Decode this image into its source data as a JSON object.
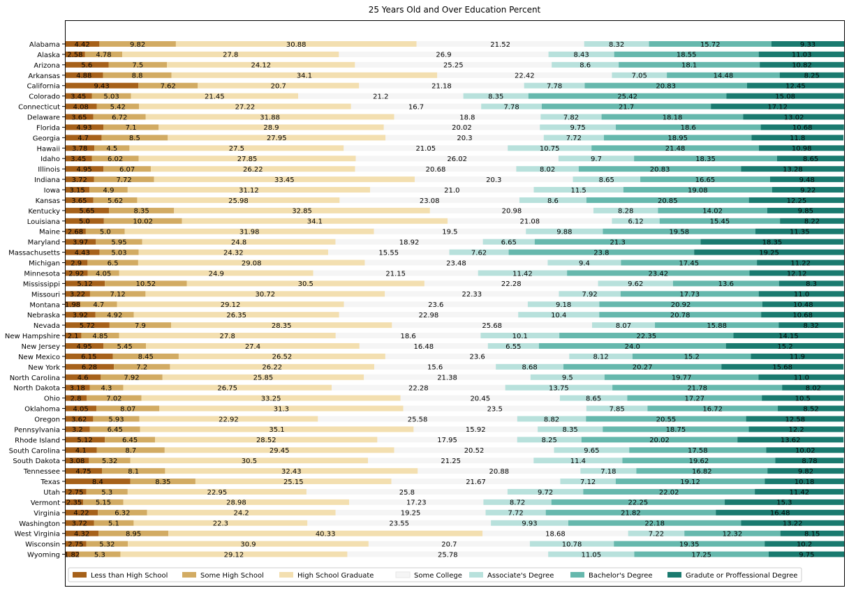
{
  "chart_data": {
    "type": "bar",
    "orientation": "horizontal",
    "stacked": true,
    "title": "25 Years Old and Over Education Percent",
    "xlabel": "",
    "ylabel": "",
    "xlim": [
      0,
      100
    ],
    "grid": false,
    "legend_position": "bottom",
    "categories": [
      "Alabama",
      "Alaska",
      "Arizona",
      "Arkansas",
      "California",
      "Colorado",
      "Connecticut",
      "Delaware",
      "Florida",
      "Georgia",
      "Hawaii",
      "Idaho",
      "Illinois",
      "Indiana",
      "Iowa",
      "Kansas",
      "Kentucky",
      "Louisiana",
      "Maine",
      "Maryland",
      "Massachusetts",
      "Michigan",
      "Minnesota",
      "Mississippi",
      "Missouri",
      "Montana",
      "Nebraska",
      "Nevada",
      "New Hampshire",
      "New Jersey",
      "New Mexico",
      "New York",
      "North Carolina",
      "North Dakota",
      "Ohio",
      "Oklahoma",
      "Oregon",
      "Pennsylvania",
      "Rhode Island",
      "South Carolina",
      "South Dakota",
      "Tennessee",
      "Texas",
      "Utah",
      "Vermont",
      "Virginia",
      "Washington",
      "West Virginia",
      "Wisconsin",
      "Wyoming"
    ],
    "series": [
      {
        "name": "Less than High School",
        "color": "#a6611a",
        "values": [
          "4.42",
          "2.58",
          "5.6",
          "4.88",
          "9.43",
          "3.45",
          "4.08",
          "3.65",
          "4.93",
          "4.7",
          "3.78",
          "3.45",
          "4.95",
          "3.72",
          "3.15",
          "3.65",
          "5.65",
          "5.0",
          "2.68",
          "3.97",
          "4.43",
          "2.9",
          "2.92",
          "5.12",
          "3.22",
          "1.98",
          "3.92",
          "5.72",
          "2.1",
          "4.95",
          "6.15",
          "6.28",
          "4.6",
          "3.18",
          "2.8",
          "4.05",
          "3.62",
          "3.2",
          "5.12",
          "4.1",
          "3.08",
          "4.75",
          "8.4",
          "2.75",
          "2.35",
          "4.22",
          "3.72",
          "4.32",
          "2.75",
          "1.82"
        ]
      },
      {
        "name": "Some High School",
        "color": "#d2ab63",
        "values": [
          "9.82",
          "4.78",
          "7.5",
          "8.8",
          "7.62",
          "5.03",
          "5.42",
          "6.72",
          "7.1",
          "8.5",
          "4.5",
          "6.02",
          "6.07",
          "7.72",
          "4.9",
          "5.62",
          "8.35",
          "10.02",
          "5.0",
          "5.95",
          "5.03",
          "6.5",
          "4.05",
          "10.52",
          "7.12",
          "4.7",
          "4.92",
          "7.9",
          "4.85",
          "5.45",
          "8.45",
          "7.2",
          "7.92",
          "4.3",
          "7.02",
          "8.07",
          "5.93",
          "6.45",
          "6.45",
          "8.7",
          "5.32",
          "8.1",
          "8.35",
          "5.3",
          "5.15",
          "6.32",
          "5.1",
          "8.95",
          "5.32",
          "5.3"
        ]
      },
      {
        "name": "High School Graduate",
        "color": "#f3dfb0",
        "values": [
          "30.88",
          "27.8",
          "24.12",
          "34.1",
          "20.7",
          "21.45",
          "27.22",
          "31.88",
          "28.9",
          "27.95",
          "27.5",
          "27.85",
          "26.22",
          "33.45",
          "31.12",
          "25.98",
          "32.85",
          "34.1",
          "31.98",
          "24.8",
          "24.32",
          "29.08",
          "24.9",
          "30.5",
          "30.72",
          "29.12",
          "26.35",
          "28.35",
          "27.8",
          "27.4",
          "26.52",
          "26.22",
          "25.85",
          "26.75",
          "33.25",
          "31.3",
          "22.92",
          "35.1",
          "28.52",
          "29.45",
          "30.5",
          "32.43",
          "25.15",
          "22.95",
          "28.98",
          "24.2",
          "22.3",
          "40.33",
          "30.9",
          "29.12"
        ]
      },
      {
        "name": "Some College",
        "color": "#f5f5f5",
        "values": [
          "21.52",
          "26.9",
          "25.25",
          "22.42",
          "21.18",
          "21.2",
          "16.7",
          "18.8",
          "20.02",
          "20.3",
          "21.05",
          "26.02",
          "20.68",
          "20.3",
          "21.0",
          "23.08",
          "20.98",
          "21.08",
          "19.5",
          "18.92",
          "15.55",
          "23.48",
          "21.15",
          "22.28",
          "22.33",
          "23.6",
          "22.98",
          "25.68",
          "18.6",
          "16.48",
          "23.6",
          "15.6",
          "21.38",
          "22.28",
          "20.45",
          "23.5",
          "25.58",
          "15.92",
          "17.95",
          "20.52",
          "21.25",
          "20.88",
          "21.67",
          "25.8",
          "17.23",
          "19.25",
          "23.55",
          "18.68",
          "20.7",
          "25.78"
        ]
      },
      {
        "name": "Associate's Degree",
        "color": "#b8e1dc",
        "values": [
          "8.32",
          "8.43",
          "8.6",
          "7.05",
          "7.78",
          "8.35",
          "7.78",
          "7.82",
          "9.75",
          "7.72",
          "10.75",
          "9.7",
          "8.02",
          "8.65",
          "11.5",
          "8.6",
          "8.28",
          "6.12",
          "9.88",
          "6.65",
          "7.62",
          "9.4",
          "11.42",
          "9.62",
          "7.92",
          "9.18",
          "10.4",
          "8.07",
          "10.1",
          "6.55",
          "8.12",
          "8.68",
          "9.5",
          "13.75",
          "8.65",
          "7.85",
          "8.82",
          "8.35",
          "8.25",
          "9.65",
          "11.4",
          "7.18",
          "7.12",
          "9.72",
          "8.72",
          "7.72",
          "9.93",
          "7.22",
          "10.78",
          "11.05"
        ]
      },
      {
        "name": "Bachelor's Degree",
        "color": "#66b8ad",
        "values": [
          "15.72",
          "18.55",
          "18.1",
          "14.48",
          "20.83",
          "25.42",
          "21.7",
          "18.18",
          "18.6",
          "18.95",
          "21.48",
          "18.35",
          "20.83",
          "16.65",
          "19.08",
          "20.85",
          "14.02",
          "15.45",
          "19.58",
          "21.3",
          "23.8",
          "17.45",
          "23.42",
          "13.6",
          "17.73",
          "20.92",
          "20.78",
          "15.88",
          "22.35",
          "24.0",
          "15.2",
          "20.27",
          "19.77",
          "21.78",
          "17.27",
          "16.72",
          "20.55",
          "18.75",
          "20.02",
          "17.58",
          "19.62",
          "16.82",
          "19.12",
          "22.02",
          "22.25",
          "21.82",
          "22.18",
          "12.32",
          "19.35",
          "17.25"
        ]
      },
      {
        "name": "Gradute or Proffessional Degree",
        "color": "#1a7a6f",
        "values": [
          "9.33",
          "11.03",
          "10.82",
          "8.25",
          "12.45",
          "15.08",
          "17.12",
          "13.02",
          "10.68",
          "11.8",
          "10.98",
          "8.65",
          "13.28",
          "9.48",
          "9.22",
          "12.25",
          "9.85",
          "8.22",
          "11.35",
          "18.35",
          "19.25",
          "11.22",
          "12.12",
          "8.3",
          "11.0",
          "10.48",
          "10.68",
          "8.32",
          "14.15",
          "15.2",
          "11.9",
          "15.68",
          "11.0",
          "8.02",
          "10.5",
          "8.52",
          "12.58",
          "12.2",
          "13.62",
          "10.02",
          "8.78",
          "9.82",
          "10.18",
          "11.42",
          "15.3",
          "16.48",
          "13.22",
          "8.15",
          "10.2",
          "9.75"
        ]
      }
    ]
  }
}
